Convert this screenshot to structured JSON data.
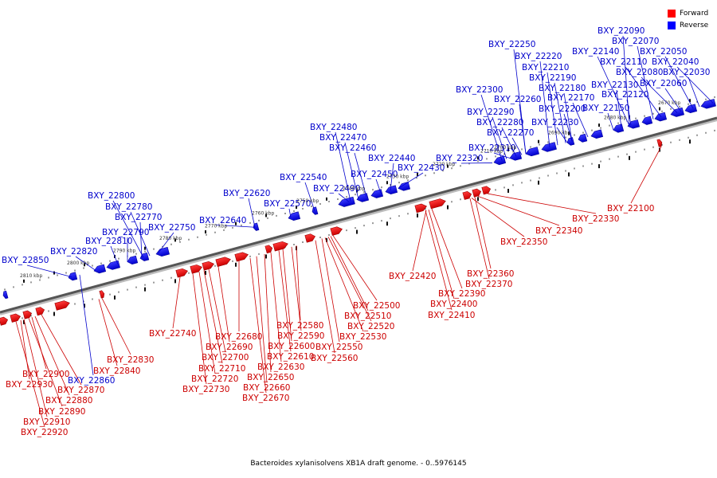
{
  "legend": {
    "forward": {
      "label": "Forward",
      "color": "#ff0000"
    },
    "reverse": {
      "label": "Reverse",
      "color": "#0000ff"
    }
  },
  "caption": "Bacteroides xylanisolvens XB1A draft genome. - 0..5976145",
  "axis": {
    "ticks": [
      "2670 kbp",
      "2680 kbp",
      "2690 kbp",
      "2700 kbp",
      "2710 kbp",
      "2720 kbp",
      "2730 kbp",
      "2740 kbp",
      "2750 kbp",
      "2760 kbp",
      "2770 kbp",
      "2780 kbp",
      "2790 kbp",
      "2800 kbp",
      "2810 kbp"
    ]
  },
  "reverse_labels": [
    "BXY_22090",
    "BXY_22070",
    "BXY_22140",
    "BXY_22050",
    "BXY_22250",
    "BXY_22110",
    "BXY_22040",
    "BXY_22220",
    "BXY_22080",
    "BXY_22030",
    "BXY_22210",
    "BXY_22190",
    "BXY_22130",
    "BXY_22060",
    "BXY_22180",
    "BXY_22120",
    "BXY_22300",
    "BXY_22170",
    "BXY_22260",
    "BXY_22200",
    "BXY_22150",
    "BXY_22290",
    "BXY_22280",
    "BXY_22230",
    "BXY_22270",
    "BXY_22480",
    "BXY_22470",
    "BXY_22460",
    "BXY_22310",
    "BXY_22440",
    "BXY_22320",
    "BXY_22430",
    "BXY_22450",
    "BXY_22540",
    "BXY_22490",
    "BXY_22620",
    "BXY_22570",
    "BXY_22800",
    "BXY_22780",
    "BXY_22640",
    "BXY_22770",
    "BXY_22750",
    "BXY_22790",
    "BXY_22810",
    "BXY_22820",
    "BXY_22850",
    "BXY_22860"
  ],
  "forward_labels": [
    "BXY_22100",
    "BXY_22330",
    "BXY_22340",
    "BXY_22350",
    "BXY_22360",
    "BXY_22420",
    "BXY_22370",
    "BXY_22390",
    "BXY_22500",
    "BXY_22400",
    "BXY_22410",
    "BXY_22510",
    "BXY_22580",
    "BXY_22520",
    "BXY_22740",
    "BXY_22590",
    "BXY_22530",
    "BXY_22680",
    "BXY_22600",
    "BXY_22550",
    "BXY_22690",
    "BXY_22610",
    "BXY_22700",
    "BXY_22560",
    "BXY_22830",
    "BXY_22630",
    "BXY_22710",
    "BXY_22840",
    "BXY_22650",
    "BXY_22720",
    "BXY_22900",
    "BXY_22930",
    "BXY_22660",
    "BXY_22730",
    "BXY_22870",
    "BXY_22670",
    "BXY_22880",
    "BXY_22890",
    "BXY_22910",
    "BXY_22920"
  ]
}
